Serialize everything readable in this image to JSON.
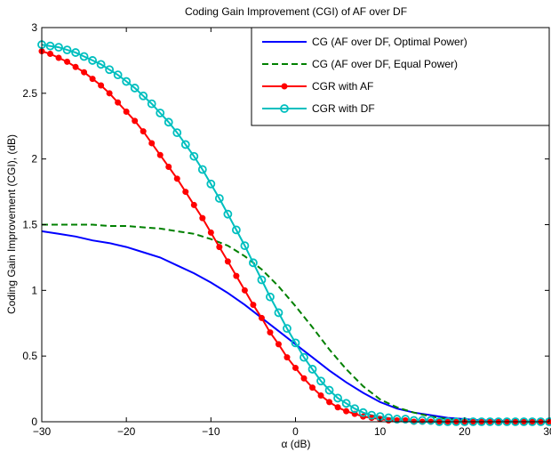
{
  "chart_data": {
    "type": "line",
    "title": "Coding Gain Improvement (CGI) of AF over DF",
    "xlabel": "α (dB)",
    "ylabel": "Coding Gain Improvement (CGI), (dB)",
    "xlim": [
      -30,
      30
    ],
    "ylim": [
      0,
      3
    ],
    "xticks": [
      "−30",
      "−20",
      "−10",
      "0",
      "10",
      "20",
      "30"
    ],
    "yticks": [
      "0",
      "0.5",
      "1",
      "1.5",
      "2",
      "2.5",
      "3"
    ],
    "grid": false,
    "legend_position": "top-right",
    "series": [
      {
        "name": "CG (AF over DF, Optimal Power)",
        "color": "#0000ff",
        "style": "solid",
        "marker": "none",
        "x": [
          -30,
          -28,
          -26,
          -24,
          -22,
          -20,
          -18,
          -16,
          -14,
          -12,
          -10,
          -8,
          -6,
          -4,
          -2,
          0,
          2,
          4,
          6,
          8,
          10,
          12,
          14,
          16,
          18,
          20,
          22,
          24,
          26,
          28,
          30
        ],
        "y": [
          1.45,
          1.43,
          1.41,
          1.38,
          1.36,
          1.33,
          1.29,
          1.25,
          1.19,
          1.13,
          1.06,
          0.98,
          0.89,
          0.79,
          0.69,
          0.59,
          0.49,
          0.39,
          0.3,
          0.22,
          0.15,
          0.1,
          0.07,
          0.05,
          0.03,
          0.02,
          0.01,
          0.01,
          0.0,
          0.0,
          0.0
        ]
      },
      {
        "name": "CG (AF over DF, Equal Power)",
        "color": "#008000",
        "style": "dashed",
        "marker": "none",
        "x": [
          -30,
          -28,
          -26,
          -24,
          -22,
          -20,
          -18,
          -16,
          -14,
          -12,
          -10,
          -8,
          -6,
          -4,
          -2,
          0,
          2,
          4,
          6,
          8,
          10,
          12,
          14,
          16,
          18,
          20,
          22,
          24,
          26,
          28,
          30
        ],
        "y": [
          1.5,
          1.5,
          1.5,
          1.5,
          1.49,
          1.49,
          1.48,
          1.47,
          1.45,
          1.43,
          1.39,
          1.34,
          1.26,
          1.16,
          1.03,
          0.88,
          0.72,
          0.55,
          0.4,
          0.27,
          0.17,
          0.11,
          0.07,
          0.04,
          0.02,
          0.01,
          0.01,
          0.0,
          0.0,
          0.0,
          0.0
        ]
      },
      {
        "name": "CGR with AF",
        "color": "#ff0000",
        "style": "solid",
        "marker": "dot",
        "x": [
          -30,
          -29,
          -28,
          -27,
          -26,
          -25,
          -24,
          -23,
          -22,
          -21,
          -20,
          -19,
          -18,
          -17,
          -16,
          -15,
          -14,
          -13,
          -12,
          -11,
          -10,
          -9,
          -8,
          -7,
          -6,
          -5,
          -4,
          -3,
          -2,
          -1,
          0,
          1,
          2,
          3,
          4,
          5,
          6,
          7,
          8,
          9,
          10,
          11,
          12,
          13,
          14,
          15,
          16,
          17,
          18,
          19,
          20,
          21,
          22,
          23,
          24,
          25,
          26,
          27,
          28,
          29,
          30
        ],
        "y": [
          2.82,
          2.8,
          2.77,
          2.74,
          2.7,
          2.66,
          2.61,
          2.56,
          2.5,
          2.43,
          2.36,
          2.29,
          2.21,
          2.12,
          2.03,
          1.94,
          1.85,
          1.75,
          1.65,
          1.55,
          1.44,
          1.33,
          1.22,
          1.11,
          1.0,
          0.89,
          0.79,
          0.68,
          0.59,
          0.49,
          0.41,
          0.33,
          0.26,
          0.2,
          0.15,
          0.11,
          0.08,
          0.06,
          0.04,
          0.03,
          0.02,
          0.01,
          0.01,
          0.01,
          0.0,
          0.0,
          0.0,
          0.0,
          0.0,
          0.0,
          0.0,
          0.0,
          0.0,
          0.0,
          0.0,
          0.0,
          0.0,
          0.0,
          0.0,
          0.0,
          0.0
        ]
      },
      {
        "name": "CGR with DF",
        "color": "#00bfbf",
        "style": "solid",
        "marker": "circle",
        "x": [
          -30,
          -29,
          -28,
          -27,
          -26,
          -25,
          -24,
          -23,
          -22,
          -21,
          -20,
          -19,
          -18,
          -17,
          -16,
          -15,
          -14,
          -13,
          -12,
          -11,
          -10,
          -9,
          -8,
          -7,
          -6,
          -5,
          -4,
          -3,
          -2,
          -1,
          0,
          1,
          2,
          3,
          4,
          5,
          6,
          7,
          8,
          9,
          10,
          11,
          12,
          13,
          14,
          15,
          16,
          17,
          18,
          19,
          20,
          21,
          22,
          23,
          24,
          25,
          26,
          27,
          28,
          29,
          30
        ],
        "y": [
          2.87,
          2.86,
          2.85,
          2.83,
          2.81,
          2.78,
          2.75,
          2.72,
          2.68,
          2.64,
          2.59,
          2.54,
          2.48,
          2.42,
          2.35,
          2.28,
          2.2,
          2.11,
          2.02,
          1.92,
          1.81,
          1.7,
          1.58,
          1.46,
          1.34,
          1.21,
          1.08,
          0.95,
          0.83,
          0.71,
          0.6,
          0.49,
          0.4,
          0.31,
          0.24,
          0.18,
          0.14,
          0.1,
          0.07,
          0.05,
          0.04,
          0.03,
          0.02,
          0.02,
          0.01,
          0.01,
          0.01,
          0.0,
          0.0,
          0.0,
          0.0,
          0.0,
          0.0,
          0.0,
          0.0,
          0.0,
          0.0,
          0.0,
          0.0,
          0.0,
          0.0
        ]
      }
    ]
  }
}
